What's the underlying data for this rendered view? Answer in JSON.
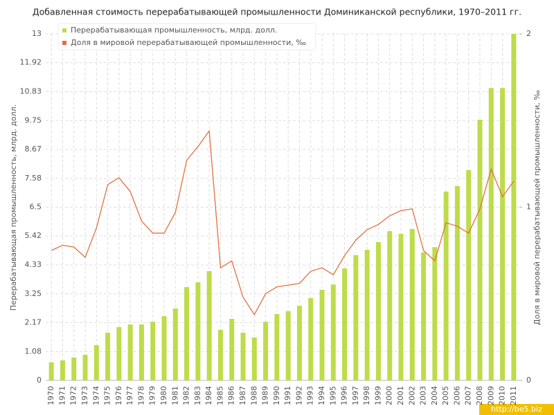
{
  "chart_data": {
    "type": "bar",
    "title": "Добавленная стоимость перерабатывающей промышленности Доминиканской республики, 1970–2011 гг.",
    "y_label": "Перерабатывающая промышленность, млрд. долл.",
    "y2_label": "Доля в мировой перерабатывающей промышленности, ‰",
    "watermark": "http://be5.biz",
    "categories": [
      "1970",
      "1971",
      "1972",
      "1973",
      "1974",
      "1975",
      "1976",
      "1977",
      "1978",
      "1979",
      "1980",
      "1981",
      "1982",
      "1983",
      "1984",
      "1985",
      "1986",
      "1987",
      "1988",
      "1989",
      "1990",
      "1991",
      "1992",
      "1993",
      "1994",
      "1995",
      "1996",
      "1997",
      "1998",
      "1999",
      "2000",
      "2001",
      "2002",
      "2003",
      "2004",
      "2005",
      "2006",
      "2007",
      "2008",
      "2009",
      "2010",
      "2011"
    ],
    "series": [
      {
        "name": "Перерабатывающая промышленность, млрд. долл.",
        "color": "#bddc4a",
        "type": "bar",
        "values": [
          0.68,
          0.75,
          0.86,
          0.96,
          1.32,
          1.79,
          2.0,
          2.1,
          2.1,
          2.2,
          2.41,
          2.7,
          3.5,
          3.68,
          4.1,
          1.9,
          2.31,
          1.79,
          1.61,
          2.2,
          2.49,
          2.6,
          2.8,
          3.09,
          3.4,
          3.6,
          4.2,
          4.7,
          4.9,
          5.19,
          5.6,
          5.5,
          5.68,
          4.8,
          5.0,
          7.08,
          7.29,
          7.89,
          9.78,
          10.97,
          10.97,
          13.0
        ]
      },
      {
        "name": "Доля в мировой перерабатывающей промышленности, ‰",
        "color": "#e2703e",
        "type": "line",
        "axis": "y2",
        "values": [
          0.75,
          0.78,
          0.77,
          0.71,
          0.88,
          1.13,
          1.17,
          1.09,
          0.92,
          0.85,
          0.85,
          0.97,
          1.27,
          1.35,
          1.44,
          0.65,
          0.69,
          0.48,
          0.38,
          0.5,
          0.54,
          0.55,
          0.56,
          0.63,
          0.65,
          0.61,
          0.72,
          0.81,
          0.87,
          0.9,
          0.95,
          0.98,
          0.99,
          0.75,
          0.69,
          0.91,
          0.89,
          0.85,
          0.99,
          1.22,
          1.06,
          1.15
        ]
      }
    ],
    "ylim": [
      0,
      13
    ],
    "yticks": [
      0,
      1.08,
      2.17,
      3.25,
      4.33,
      5.42,
      6.5,
      7.58,
      8.67,
      9.75,
      10.83,
      11.92,
      13
    ],
    "y2lim": [
      0,
      2
    ],
    "y2ticks": [
      0,
      1,
      2
    ],
    "grid": true,
    "legend": "top-left"
  }
}
